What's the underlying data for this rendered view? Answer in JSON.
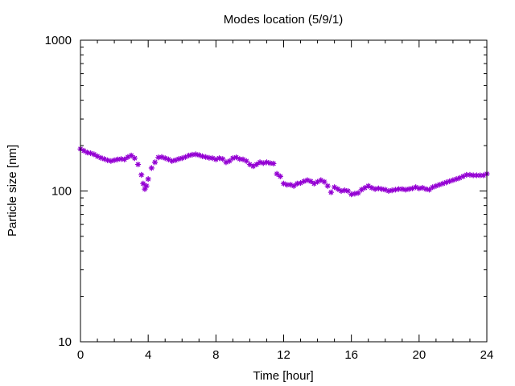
{
  "chart_data": {
    "type": "scatter",
    "title": "Modes location (5/9/1)",
    "xlabel": "Time [hour]",
    "ylabel": "Particle size [nm]",
    "xlim": [
      0,
      24
    ],
    "ylim": [
      10,
      1000
    ],
    "yscale": "log",
    "x_ticks": [
      0,
      4,
      8,
      12,
      16,
      20,
      24
    ],
    "x_tick_labels": [
      "0",
      "4",
      "8",
      "12",
      "16",
      "20",
      "24"
    ],
    "y_ticks": [
      10,
      100,
      1000
    ],
    "y_tick_labels": [
      "10",
      "100",
      "1000"
    ],
    "grid": false,
    "legend": "none",
    "marker": "star",
    "color": "#9400D3",
    "series": [
      {
        "x": [
          0.0,
          0.2,
          0.4,
          0.6,
          0.8,
          1.0,
          1.2,
          1.4,
          1.6,
          1.8,
          2.0,
          2.2,
          2.4,
          2.6,
          2.8,
          3.0,
          3.2,
          3.4,
          3.6,
          3.7,
          3.8,
          3.9,
          4.0,
          4.2,
          4.4,
          4.6,
          4.8,
          5.0,
          5.2,
          5.4,
          5.6,
          5.8,
          6.0,
          6.2,
          6.4,
          6.6,
          6.8,
          7.0,
          7.2,
          7.4,
          7.6,
          7.8,
          8.0,
          8.2,
          8.4,
          8.6,
          8.8,
          9.0,
          9.2,
          9.4,
          9.6,
          9.8,
          10.0,
          10.2,
          10.4,
          10.6,
          10.8,
          11.0,
          11.2,
          11.4,
          11.6,
          11.8,
          12.0,
          12.2,
          12.4,
          12.6,
          12.8,
          13.0,
          13.2,
          13.4,
          13.6,
          13.8,
          14.0,
          14.2,
          14.4,
          14.6,
          14.8,
          15.0,
          15.2,
          15.4,
          15.6,
          15.8,
          16.0,
          16.2,
          16.4,
          16.6,
          16.8,
          17.0,
          17.2,
          17.4,
          17.6,
          17.8,
          18.0,
          18.2,
          18.4,
          18.6,
          18.8,
          19.0,
          19.2,
          19.4,
          19.6,
          19.8,
          20.0,
          20.2,
          20.4,
          20.6,
          20.8,
          21.0,
          21.2,
          21.4,
          21.6,
          21.8,
          22.0,
          22.2,
          22.4,
          22.6,
          22.8,
          23.0,
          23.2,
          23.4,
          23.6,
          23.8,
          24.0
        ],
        "y": [
          190,
          185,
          180,
          178,
          175,
          170,
          166,
          163,
          160,
          158,
          160,
          162,
          163,
          162,
          168,
          172,
          165,
          150,
          128,
          112,
          103,
          108,
          120,
          142,
          155,
          167,
          168,
          165,
          162,
          158,
          160,
          163,
          165,
          168,
          172,
          174,
          175,
          173,
          170,
          168,
          166,
          165,
          162,
          165,
          163,
          155,
          158,
          165,
          167,
          163,
          162,
          158,
          150,
          146,
          150,
          155,
          153,
          155,
          153,
          152,
          130,
          125,
          112,
          110,
          110,
          108,
          112,
          113,
          116,
          118,
          116,
          112,
          115,
          118,
          115,
          108,
          98,
          106,
          103,
          100,
          101,
          100,
          95,
          96,
          97,
          102,
          105,
          108,
          105,
          103,
          104,
          103,
          102,
          100,
          101,
          102,
          103,
          103,
          102,
          103,
          104,
          106,
          104,
          105,
          103,
          102,
          106,
          108,
          110,
          112,
          114,
          116,
          118,
          120,
          122,
          125,
          128,
          128,
          127,
          127,
          127,
          127,
          130
        ]
      }
    ]
  }
}
